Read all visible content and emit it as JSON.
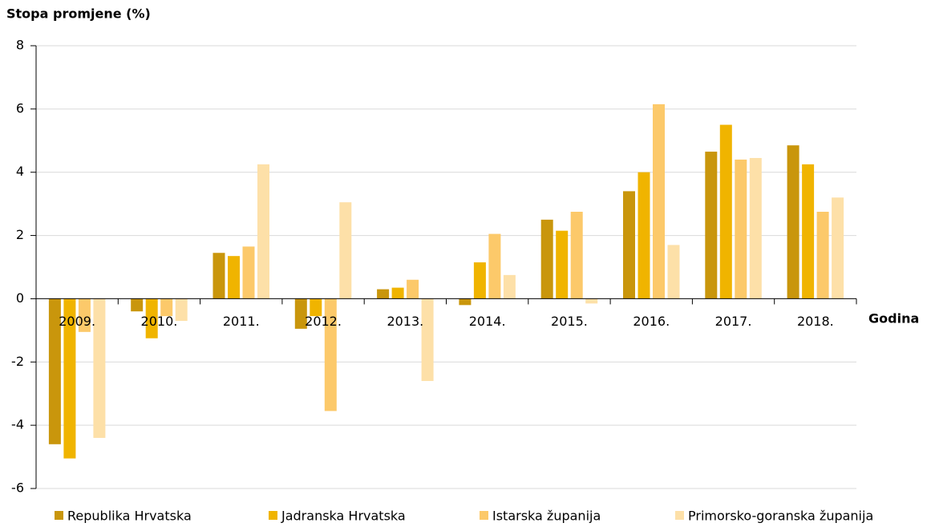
{
  "chart_data": {
    "type": "bar",
    "ylabel": "Stopa promjene (%)",
    "xlabel": "Godina",
    "categories": [
      "2009.",
      "2010.",
      "2011.",
      "2012.",
      "2013.",
      "2014.",
      "2015.",
      "2016.",
      "2017.",
      "2018."
    ],
    "series": [
      {
        "name": "Republika Hrvatska",
        "color": "#c9960c",
        "values": [
          -4.6,
          -0.4,
          1.45,
          -0.95,
          0.3,
          -0.2,
          2.5,
          3.4,
          4.65,
          4.85
        ]
      },
      {
        "name": "Jadranska Hrvatska",
        "color": "#f0b400",
        "values": [
          -5.05,
          -1.25,
          1.35,
          -0.55,
          0.35,
          1.15,
          2.15,
          4.0,
          5.5,
          4.25
        ]
      },
      {
        "name": "Istarska županija",
        "color": "#fcc96a",
        "values": [
          -1.05,
          -0.55,
          1.65,
          -3.55,
          0.6,
          2.05,
          2.75,
          6.15,
          4.4,
          2.75
        ]
      },
      {
        "name": "Primorsko-goranska županija",
        "color": "#fde0a8",
        "values": [
          -4.4,
          -0.7,
          4.25,
          3.05,
          -2.6,
          0.75,
          -0.15,
          1.7,
          4.45,
          3.2
        ]
      }
    ],
    "ylim": [
      -6,
      8
    ],
    "yticks": [
      -6,
      -4,
      -2,
      0,
      2,
      4,
      6,
      8
    ],
    "grid": true
  }
}
